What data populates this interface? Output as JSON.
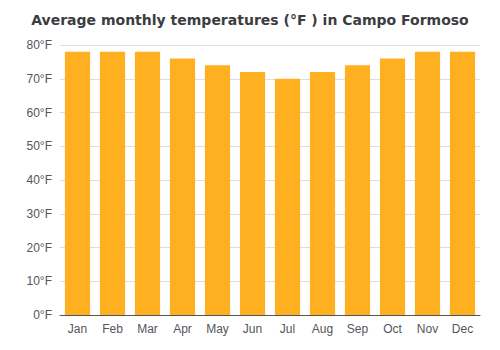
{
  "chart_data": {
    "type": "bar",
    "title": "Average monthly temperatures (°F ) in Campo Formoso",
    "categories": [
      "Jan",
      "Feb",
      "Mar",
      "Apr",
      "May",
      "Jun",
      "Jul",
      "Aug",
      "Sep",
      "Oct",
      "Nov",
      "Dec"
    ],
    "values": [
      78,
      78,
      78,
      76,
      74,
      72,
      70,
      72,
      74,
      76,
      78,
      78
    ],
    "color": "#FFB020",
    "ylim": [
      0,
      80
    ],
    "yticks": [
      {
        "value": 0,
        "label": "0°F"
      },
      {
        "value": 10,
        "label": "10°F"
      },
      {
        "value": 20,
        "label": "20°F"
      },
      {
        "value": 30,
        "label": "30°F"
      },
      {
        "value": 40,
        "label": "40°F"
      },
      {
        "value": 50,
        "label": "50°F"
      },
      {
        "value": 60,
        "label": "60°F"
      },
      {
        "value": 70,
        "label": "70°F"
      },
      {
        "value": 80,
        "label": "80°F"
      }
    ],
    "grid": true
  }
}
